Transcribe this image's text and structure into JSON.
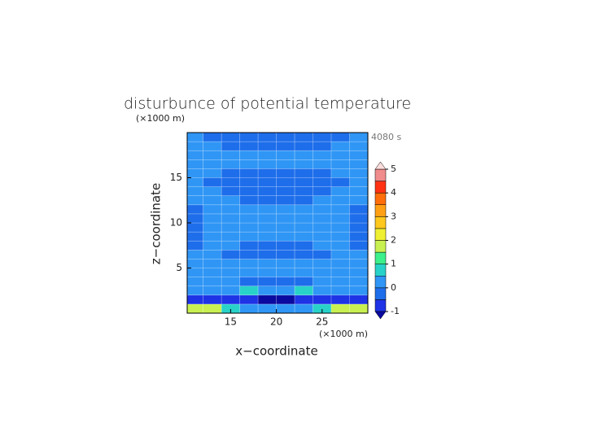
{
  "chart_data": {
    "type": "contour",
    "title": "disturbunce of potential temperature",
    "time_label": "4080 s",
    "x_label": "x−coordinate",
    "y_label": "z−coordinate",
    "x_unit": "(×1000 m)",
    "y_unit": "(×1000 m)",
    "xlim": [
      10.25,
      30
    ],
    "ylim": [
      0,
      20
    ],
    "xticks": [
      15,
      20,
      25
    ],
    "yticks": [
      5,
      10,
      15
    ],
    "x": [
      11,
      13,
      15,
      17,
      19,
      21,
      23,
      25,
      27,
      29
    ],
    "y": [
      0.5,
      1.5,
      2.5,
      3.5,
      4.5,
      5.5,
      6.5,
      7.5,
      8.5,
      9.5,
      10.5,
      11.5,
      12.5,
      13.5,
      14.5,
      15.5,
      16.5,
      17.5,
      18.5,
      19.5
    ],
    "z": [
      [
        1.8,
        1.8,
        0.8,
        0.2,
        0.2,
        0.2,
        0.2,
        0.8,
        1.8,
        1.8
      ],
      [
        -0.6,
        -0.7,
        -0.8,
        -0.9,
        -1.1,
        -1.1,
        -0.9,
        -0.8,
        -0.7,
        -0.6
      ],
      [
        0.2,
        0.2,
        0.3,
        0.6,
        0.4,
        0.4,
        0.6,
        0.3,
        0.2,
        0.2
      ],
      [
        0.1,
        0.1,
        0.1,
        -0.2,
        -0.2,
        -0.2,
        -0.2,
        0.1,
        0.1,
        0.1
      ],
      [
        0.2,
        0.2,
        0.2,
        0.2,
        0.2,
        0.2,
        0.2,
        0.2,
        0.2,
        0.2
      ],
      [
        0.2,
        0.2,
        0.2,
        0.2,
        0.2,
        0.2,
        0.2,
        0.2,
        0.2,
        0.2
      ],
      [
        0.2,
        0.2,
        -0.2,
        -0.2,
        -0.2,
        -0.2,
        -0.2,
        -0.2,
        0.2,
        0.2
      ],
      [
        -0.2,
        0.2,
        0.2,
        -0.2,
        -0.2,
        -0.2,
        -0.2,
        0.2,
        0.2,
        -0.2
      ],
      [
        -0.2,
        0.2,
        0.2,
        0.2,
        0.2,
        0.2,
        0.2,
        0.2,
        0.2,
        -0.2
      ],
      [
        -0.2,
        0.2,
        0.2,
        0.2,
        0.2,
        0.2,
        0.2,
        0.2,
        0.2,
        -0.2
      ],
      [
        -0.2,
        0.2,
        0.2,
        0.2,
        0.2,
        0.2,
        0.2,
        0.2,
        0.2,
        -0.2
      ],
      [
        -0.2,
        0.2,
        0.2,
        0.2,
        0.2,
        0.2,
        0.2,
        0.2,
        0.2,
        -0.2
      ],
      [
        0.2,
        0.2,
        0.2,
        -0.2,
        -0.2,
        -0.2,
        -0.2,
        0.2,
        0.2,
        0.2
      ],
      [
        0.2,
        0.2,
        -0.2,
        -0.2,
        -0.2,
        -0.2,
        -0.2,
        -0.2,
        0.2,
        0.2
      ],
      [
        0.2,
        -0.2,
        -0.2,
        -0.2,
        -0.2,
        -0.2,
        -0.2,
        -0.2,
        -0.2,
        0.2
      ],
      [
        0.2,
        0.2,
        -0.2,
        -0.2,
        -0.2,
        -0.2,
        -0.2,
        -0.2,
        0.2,
        0.2
      ],
      [
        0.2,
        0.2,
        0.2,
        0.2,
        0.2,
        0.2,
        0.2,
        0.2,
        0.2,
        0.2
      ],
      [
        0.2,
        0.2,
        0.2,
        0.2,
        0.2,
        0.2,
        0.2,
        0.2,
        0.2,
        0.2
      ],
      [
        0.2,
        0.2,
        -0.2,
        -0.2,
        -0.2,
        -0.2,
        -0.2,
        -0.2,
        0.2,
        0.2
      ],
      [
        0.2,
        -0.2,
        -0.2,
        -0.2,
        -0.2,
        -0.2,
        -0.2,
        -0.2,
        -0.2,
        0.2
      ]
    ],
    "colorbar": {
      "levels": [
        -1,
        -0.5,
        0,
        0.5,
        1,
        1.5,
        2,
        2.5,
        3,
        3.5,
        4,
        4.5,
        5
      ],
      "colors": [
        "#1e32e6",
        "#1e6eeb",
        "#2f96f5",
        "#28d2c8",
        "#3cf08c",
        "#c8f050",
        "#f0f032",
        "#ffc81e",
        "#ffa014",
        "#ff6e0a",
        "#ff3214",
        "#f08c8c"
      ],
      "under_color": "#0a0aa0",
      "over_color": "#ffdcdc",
      "ticks": [
        -1,
        0,
        1,
        2,
        3,
        4,
        5
      ]
    }
  }
}
